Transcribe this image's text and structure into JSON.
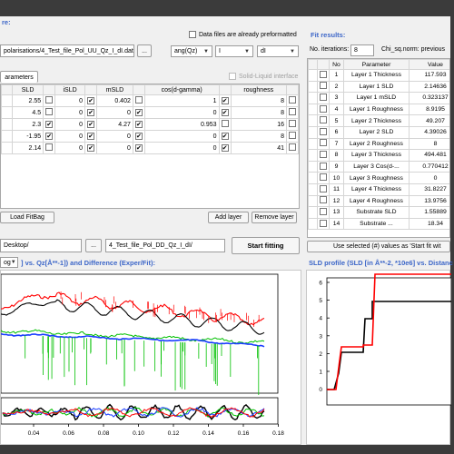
{
  "colors": {
    "accent": "#3c66c8",
    "frame": "#3b3b3b",
    "red": "#ff0000",
    "blue": "#1a3cff",
    "green": "#00c000",
    "black": "#000000"
  },
  "top": {
    "title_fragment": "re:",
    "file_path": "polarisations/4_Test_file_Pol_UU_Qz_I_dI.dat']",
    "browse_label": "...",
    "preformatted_label": "Data files are already preformatted",
    "preformatted_checked": false,
    "col1_value": "ang(Qz)",
    "col2_value": "I",
    "col3_value": "dI",
    "parameters_tab": "arameters",
    "solid_liquid_label": "Solid-Liquid interface"
  },
  "layers": {
    "headers": [
      "SLD",
      "",
      "iSLD",
      "",
      "mSLD",
      "",
      "cos(d-gamma)",
      "",
      "roughness",
      ""
    ],
    "rows": [
      {
        "sld": "2.55",
        "sld_chk": false,
        "isld": "0",
        "isld_chk": true,
        "msld": "0.402",
        "msld_chk": false,
        "cos": "1",
        "cos_chk": true,
        "rough": "8",
        "rough_chk": false
      },
      {
        "sld": "4.5",
        "sld_chk": false,
        "isld": "0",
        "isld_chk": true,
        "msld": "0",
        "msld_chk": true,
        "cos": "0",
        "cos_chk": true,
        "rough": "8",
        "rough_chk": false
      },
      {
        "sld": "2.3",
        "sld_chk": true,
        "isld": "0",
        "isld_chk": true,
        "msld": "4.27",
        "msld_chk": true,
        "cos": "0.953",
        "cos_chk": false,
        "rough": "16",
        "rough_chk": false
      },
      {
        "sld": "-1.95",
        "sld_chk": true,
        "isld": "0",
        "isld_chk": true,
        "msld": "0",
        "msld_chk": true,
        "cos": "0",
        "cos_chk": true,
        "rough": "8",
        "rough_chk": false
      },
      {
        "sld": "2.14",
        "sld_chk": false,
        "isld": "0",
        "isld_chk": true,
        "msld": "0",
        "msld_chk": true,
        "cos": "0",
        "cos_chk": true,
        "rough": "41",
        "rough_chk": false
      }
    ],
    "load_fitbag": "Load FitBag",
    "add_layer": "Add layer",
    "remove_layer": "Remove layer"
  },
  "paths": {
    "desktop": "Desktop/",
    "browse": "...",
    "dd_file": "4_Test_file_Pol_DD_Qz_I_dI/",
    "start_fitting": "Start fitting"
  },
  "fit": {
    "title": "Fit results:",
    "iter_label": "No. iterations:",
    "iter_value": "8",
    "chi_label": "Chi_sq.norm: previous",
    "headers": [
      "No",
      "Parameter",
      "Value"
    ],
    "rows": [
      {
        "no": "1",
        "param": "Layer 1 Thickness",
        "value": "117.593"
      },
      {
        "no": "2",
        "param": "Layer 1 SLD",
        "value": "2.14636"
      },
      {
        "no": "3",
        "param": "Layer 1 mSLD",
        "value": "0.323137"
      },
      {
        "no": "4",
        "param": "Layer 1 Roughness",
        "value": "8.9195"
      },
      {
        "no": "5",
        "param": "Layer 2 Thickness",
        "value": "49.207"
      },
      {
        "no": "6",
        "param": "Layer 2 SLD",
        "value": "4.39026"
      },
      {
        "no": "7",
        "param": "Layer 2 Roughness",
        "value": "8"
      },
      {
        "no": "8",
        "param": "Layer 3 Thickness",
        "value": "494.481"
      },
      {
        "no": "9",
        "param": "Layer 3 Cos(d-...",
        "value": "0.770412"
      },
      {
        "no": "10",
        "param": "Layer 3 Roughness",
        "value": "0"
      },
      {
        "no": "11",
        "param": "Layer 4 Thickness",
        "value": "31.8227"
      },
      {
        "no": "12",
        "param": "Layer 4 Roughness",
        "value": "13.9756"
      },
      {
        "no": "13",
        "param": "Substrate  SLD",
        "value": "1.55889"
      },
      {
        "no": "14",
        "param": "Substrate ...",
        "value": "18.34"
      }
    ],
    "use_selected": "Use selected (#) values as 'Start fit wit"
  },
  "plot": {
    "scale_value": "og",
    "title_rest": "] vs. Qz[Å**-1]) and Difference (Exper/Fit):",
    "x_ticks": [
      "0.04",
      "0.06",
      "0.08",
      "0.10",
      "0.12",
      "0.14",
      "0.16",
      "0.18"
    ]
  },
  "sld": {
    "title": "SLD profile (SLD [in Å**-2, *10e6] vs. Distanc",
    "y_ticks": [
      "6",
      "5",
      "4",
      "3",
      "2",
      "1",
      "0"
    ]
  }
}
